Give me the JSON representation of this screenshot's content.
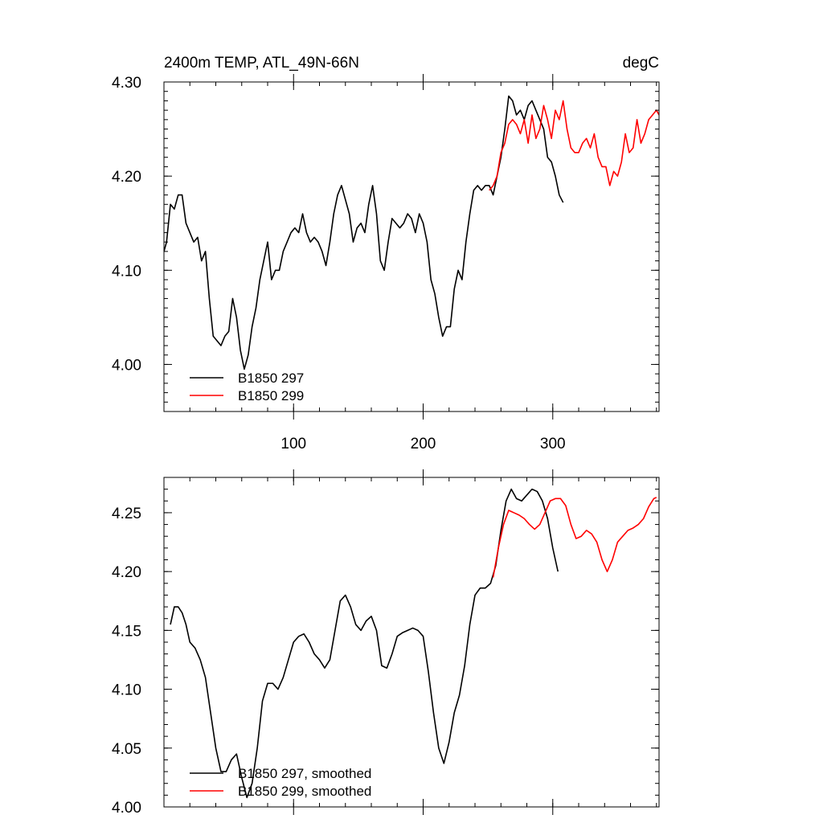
{
  "chart_data": [
    {
      "type": "line",
      "title": "2400m TEMP, ATL_49N-66N",
      "units": "degC",
      "xlim": [
        0,
        382
      ],
      "ylim": [
        3.95,
        4.3
      ],
      "xticks": [
        100,
        200,
        300
      ],
      "xtick_labels": [
        "100",
        "200",
        "300"
      ],
      "yticks": [
        4.0,
        4.1,
        4.2,
        4.3
      ],
      "ytick_labels": [
        "4.00",
        "4.10",
        "4.20",
        "4.30"
      ],
      "legend_position": "bottom-left",
      "series": [
        {
          "name": "B1850 297",
          "color": "#000000",
          "x": [
            0,
            2,
            5,
            8,
            11,
            14,
            17,
            20,
            23,
            26,
            29,
            32,
            35,
            38,
            41,
            44,
            47,
            50,
            53,
            56,
            59,
            62,
            65,
            68,
            71,
            74,
            77,
            80,
            83,
            86,
            89,
            92,
            95,
            98,
            101,
            104,
            107,
            110,
            113,
            116,
            119,
            122,
            125,
            128,
            131,
            134,
            137,
            140,
            143,
            146,
            149,
            152,
            155,
            158,
            161,
            164,
            167,
            170,
            173,
            176,
            179,
            182,
            185,
            188,
            191,
            194,
            197,
            200,
            203,
            206,
            209,
            212,
            215,
            218,
            221,
            224,
            227,
            230,
            233,
            236,
            239,
            242,
            245,
            248,
            251,
            254,
            257,
            260,
            263,
            266,
            269,
            272,
            275,
            278,
            281,
            284,
            287,
            290,
            293,
            296,
            299,
            302,
            305,
            308
          ],
          "values": [
            4.12,
            4.13,
            4.17,
            4.165,
            4.18,
            4.18,
            4.15,
            4.14,
            4.13,
            4.135,
            4.11,
            4.12,
            4.07,
            4.03,
            4.025,
            4.02,
            4.03,
            4.035,
            4.07,
            4.05,
            4.015,
            3.995,
            4.01,
            4.04,
            4.06,
            4.09,
            4.11,
            4.13,
            4.09,
            4.1,
            4.1,
            4.12,
            4.13,
            4.14,
            4.145,
            4.14,
            4.16,
            4.14,
            4.13,
            4.135,
            4.13,
            4.12,
            4.105,
            4.13,
            4.16,
            4.18,
            4.19,
            4.175,
            4.16,
            4.13,
            4.145,
            4.15,
            4.14,
            4.17,
            4.19,
            4.16,
            4.11,
            4.1,
            4.13,
            4.155,
            4.15,
            4.145,
            4.15,
            4.16,
            4.155,
            4.14,
            4.16,
            4.15,
            4.13,
            4.09,
            4.075,
            4.05,
            4.03,
            4.04,
            4.04,
            4.08,
            4.1,
            4.09,
            4.13,
            4.16,
            4.185,
            4.19,
            4.185,
            4.19,
            4.19,
            4.18,
            4.2,
            4.22,
            4.25,
            4.285,
            4.28,
            4.265,
            4.27,
            4.26,
            4.275,
            4.28,
            4.27,
            4.26,
            4.25,
            4.22,
            4.215,
            4.2,
            4.18,
            4.172
          ]
        },
        {
          "name": "B1850 299",
          "color": "#ff0000",
          "x": [
            251,
            254,
            257,
            260,
            263,
            266,
            269,
            272,
            275,
            278,
            281,
            284,
            287,
            290,
            293,
            296,
            299,
            302,
            305,
            308,
            311,
            314,
            317,
            320,
            323,
            326,
            329,
            332,
            335,
            338,
            341,
            344,
            347,
            350,
            353,
            356,
            359,
            362,
            365,
            368,
            371,
            374,
            377,
            380,
            382
          ],
          "values": [
            4.185,
            4.19,
            4.2,
            4.225,
            4.235,
            4.255,
            4.26,
            4.255,
            4.245,
            4.26,
            4.235,
            4.265,
            4.24,
            4.25,
            4.275,
            4.26,
            4.24,
            4.27,
            4.26,
            4.28,
            4.25,
            4.23,
            4.225,
            4.225,
            4.235,
            4.24,
            4.23,
            4.245,
            4.22,
            4.21,
            4.21,
            4.19,
            4.205,
            4.2,
            4.215,
            4.245,
            4.225,
            4.23,
            4.26,
            4.235,
            4.245,
            4.26,
            4.265,
            4.27,
            4.265
          ]
        }
      ]
    },
    {
      "type": "line",
      "xlim": [
        0,
        382
      ],
      "ylim": [
        4.0,
        4.28
      ],
      "xticks": [
        100,
        200,
        300
      ],
      "yticks": [
        4.0,
        4.05,
        4.1,
        4.15,
        4.2,
        4.25
      ],
      "ytick_labels": [
        "4.00",
        "4.05",
        "4.10",
        "4.15",
        "4.20",
        "4.25"
      ],
      "legend_position": "bottom-left",
      "series": [
        {
          "name": "B1850 297, smoothed",
          "color": "#000000",
          "x": [
            5,
            8,
            11,
            14,
            17,
            20,
            24,
            28,
            32,
            36,
            40,
            44,
            48,
            52,
            56,
            60,
            64,
            68,
            72,
            76,
            80,
            84,
            88,
            92,
            96,
            100,
            104,
            108,
            112,
            116,
            120,
            124,
            128,
            132,
            136,
            140,
            144,
            148,
            152,
            156,
            160,
            164,
            168,
            172,
            176,
            180,
            184,
            188,
            192,
            196,
            200,
            204,
            208,
            212,
            216,
            220,
            224,
            228,
            232,
            236,
            240,
            244,
            248,
            252,
            256,
            260,
            264,
            268,
            272,
            276,
            280,
            284,
            288,
            292,
            296,
            300,
            304
          ],
          "values": [
            4.155,
            4.17,
            4.17,
            4.165,
            4.155,
            4.14,
            4.135,
            4.125,
            4.11,
            4.08,
            4.05,
            4.03,
            4.03,
            4.04,
            4.045,
            4.025,
            4.008,
            4.02,
            4.05,
            4.09,
            4.105,
            4.105,
            4.1,
            4.11,
            4.125,
            4.14,
            4.145,
            4.147,
            4.14,
            4.13,
            4.125,
            4.118,
            4.125,
            4.15,
            4.175,
            4.18,
            4.17,
            4.155,
            4.15,
            4.158,
            4.162,
            4.15,
            4.12,
            4.118,
            4.13,
            4.145,
            4.148,
            4.15,
            4.152,
            4.15,
            4.145,
            4.115,
            4.08,
            4.05,
            4.037,
            4.055,
            4.08,
            4.095,
            4.12,
            4.155,
            4.18,
            4.186,
            4.186,
            4.19,
            4.205,
            4.235,
            4.26,
            4.27,
            4.262,
            4.26,
            4.265,
            4.27,
            4.268,
            4.26,
            4.245,
            4.22,
            4.2
          ]
        },
        {
          "name": "B1850 299, smoothed",
          "color": "#ff0000",
          "x": [
            254,
            258,
            262,
            266,
            270,
            274,
            278,
            282,
            286,
            290,
            294,
            298,
            302,
            306,
            310,
            314,
            318,
            322,
            326,
            330,
            334,
            338,
            342,
            346,
            350,
            354,
            358,
            362,
            366,
            370,
            374,
            378,
            380
          ],
          "values": [
            4.195,
            4.22,
            4.24,
            4.252,
            4.25,
            4.248,
            4.245,
            4.24,
            4.236,
            4.24,
            4.25,
            4.26,
            4.262,
            4.262,
            4.256,
            4.24,
            4.228,
            4.23,
            4.235,
            4.232,
            4.225,
            4.21,
            4.2,
            4.21,
            4.225,
            4.23,
            4.235,
            4.237,
            4.24,
            4.245,
            4.255,
            4.262,
            4.263
          ]
        }
      ]
    }
  ]
}
